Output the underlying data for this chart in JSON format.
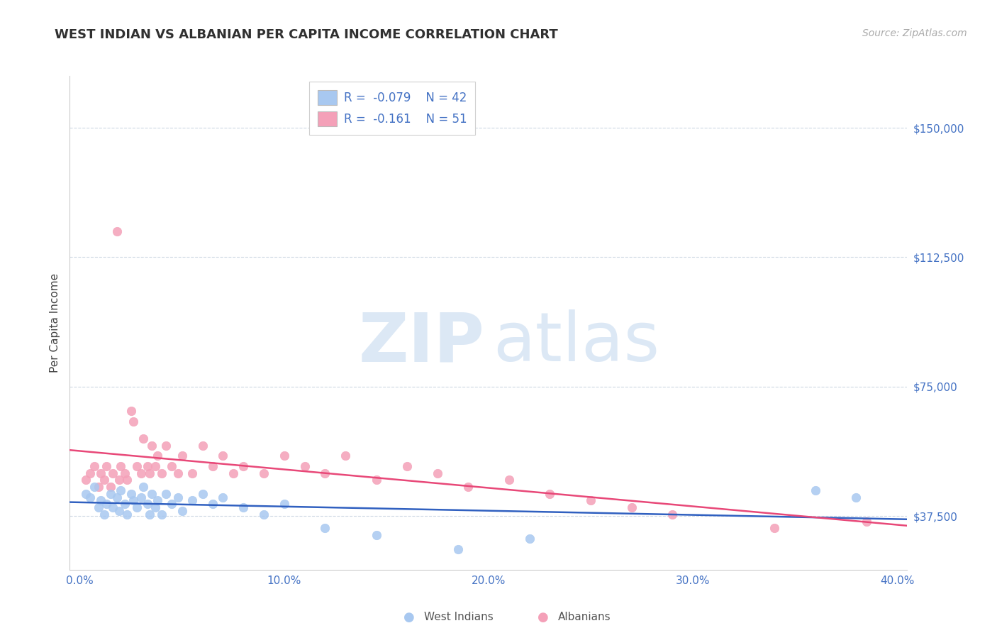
{
  "title": "WEST INDIAN VS ALBANIAN PER CAPITA INCOME CORRELATION CHART",
  "source": "Source: ZipAtlas.com",
  "ylabel": "Per Capita Income",
  "xlim": [
    -0.005,
    0.405
  ],
  "ylim": [
    22000,
    165000
  ],
  "yticks": [
    37500,
    75000,
    112500,
    150000
  ],
  "ytick_labels": [
    "$37,500",
    "$75,000",
    "$112,500",
    "$150,000"
  ],
  "xticks": [
    0.0,
    0.1,
    0.2,
    0.3,
    0.4
  ],
  "xtick_labels": [
    "0.0%",
    "10.0%",
    "20.0%",
    "30.0%",
    "40.0%"
  ],
  "west_indians_color": "#a8c8f0",
  "albanians_color": "#f4a0b8",
  "trend_blue": "#3060c0",
  "trend_pink": "#e84878",
  "west_indians_R": -0.079,
  "west_indians_N": 42,
  "albanians_R": -0.161,
  "albanians_N": 51,
  "background_color": "#ffffff",
  "grid_color": "#c8d4e0",
  "axis_color": "#4472c4",
  "title_color": "#303030",
  "ylabel_color": "#444444",
  "west_indians_x": [
    0.003,
    0.005,
    0.007,
    0.009,
    0.01,
    0.012,
    0.013,
    0.015,
    0.016,
    0.018,
    0.019,
    0.02,
    0.022,
    0.023,
    0.025,
    0.026,
    0.028,
    0.03,
    0.031,
    0.033,
    0.034,
    0.035,
    0.037,
    0.038,
    0.04,
    0.042,
    0.045,
    0.048,
    0.05,
    0.055,
    0.06,
    0.065,
    0.07,
    0.08,
    0.09,
    0.1,
    0.12,
    0.145,
    0.185,
    0.22,
    0.36,
    0.38
  ],
  "west_indians_y": [
    44000,
    43000,
    46000,
    40000,
    42000,
    38000,
    41000,
    44000,
    40000,
    43000,
    39000,
    45000,
    41000,
    38000,
    44000,
    42000,
    40000,
    43000,
    46000,
    41000,
    38000,
    44000,
    40000,
    42000,
    38000,
    44000,
    41000,
    43000,
    39000,
    42000,
    44000,
    41000,
    43000,
    40000,
    38000,
    41000,
    34000,
    32000,
    28000,
    31000,
    45000,
    43000
  ],
  "albanians_x": [
    0.003,
    0.005,
    0.007,
    0.009,
    0.01,
    0.012,
    0.013,
    0.015,
    0.016,
    0.018,
    0.019,
    0.02,
    0.022,
    0.023,
    0.025,
    0.026,
    0.028,
    0.03,
    0.031,
    0.033,
    0.034,
    0.035,
    0.037,
    0.038,
    0.04,
    0.042,
    0.045,
    0.048,
    0.05,
    0.055,
    0.06,
    0.065,
    0.07,
    0.075,
    0.08,
    0.09,
    0.1,
    0.11,
    0.12,
    0.13,
    0.145,
    0.16,
    0.175,
    0.19,
    0.21,
    0.23,
    0.25,
    0.27,
    0.29,
    0.34,
    0.385
  ],
  "albanians_y": [
    48000,
    50000,
    52000,
    46000,
    50000,
    48000,
    52000,
    46000,
    50000,
    120000,
    48000,
    52000,
    50000,
    48000,
    68000,
    65000,
    52000,
    50000,
    60000,
    52000,
    50000,
    58000,
    52000,
    55000,
    50000,
    58000,
    52000,
    50000,
    55000,
    50000,
    58000,
    52000,
    55000,
    50000,
    52000,
    50000,
    55000,
    52000,
    50000,
    55000,
    48000,
    52000,
    50000,
    46000,
    48000,
    44000,
    42000,
    40000,
    38000,
    34000,
    36000
  ]
}
